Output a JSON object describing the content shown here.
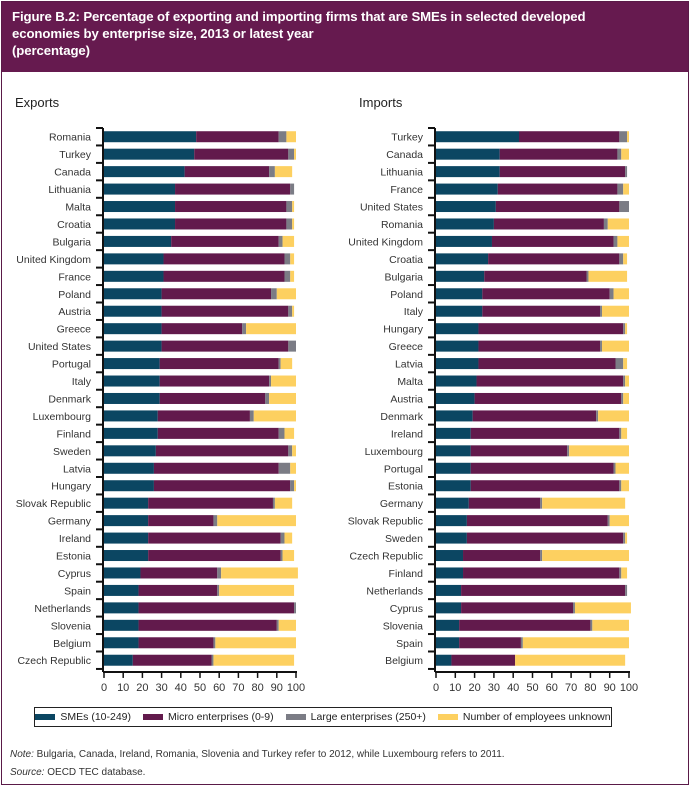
{
  "header": {
    "line1": "Figure B.2: Percentage of exporting and importing firms that are SMEs in selected developed",
    "line2": "economies by enterprise size, 2013 or latest year",
    "line3": "(percentage)"
  },
  "legend": [
    {
      "label": "SMEs (10-249)",
      "color": "#0b4662"
    },
    {
      "label": "Micro enterprises (0-9)",
      "color": "#621a4c"
    },
    {
      "label": "Large enterprises (250+)",
      "color": "#7b7c85"
    },
    {
      "label": "Number of employees unknown",
      "color": "#fdd060"
    }
  ],
  "note": {
    "label": "Note:",
    "text": " Bulgaria, Canada, Ireland, Romania, Slovenia and Turkey refer to 2012, while Luxembourg refers to 2011."
  },
  "source": {
    "label": "Source:",
    "text": " OECD TEC database."
  },
  "chart_data": [
    {
      "type": "bar",
      "orientation": "horizontal",
      "stacked": true,
      "title": "Exports",
      "xlabel": "",
      "ylabel": "",
      "xlim": [
        0,
        100
      ],
      "xticks": [
        0,
        10,
        20,
        30,
        40,
        50,
        60,
        70,
        80,
        90,
        100
      ],
      "grid": false,
      "legend": "bottom",
      "categories": [
        "Romania",
        "Turkey",
        "Canada",
        "Lithuania",
        "Malta",
        "Croatia",
        "Bulgaria",
        "United Kingdom",
        "France",
        "Poland",
        "Austria",
        "Greece",
        "United States",
        "Portugal",
        "Italy",
        "Denmark",
        "Luxembourg",
        "Finland",
        "Sweden",
        "Latvia",
        "Hungary",
        "Slovak Republic",
        "Germany",
        "Ireland",
        "Estonia",
        "Cyprus",
        "Spain",
        "Netherlands",
        "Slovenia",
        "Belgium",
        "Czech Republic"
      ],
      "series": [
        {
          "name": "SMEs (10-249)",
          "values": [
            48,
            47,
            42,
            37,
            37,
            37,
            35,
            31,
            31,
            30,
            30,
            30,
            30,
            29,
            29,
            29,
            28,
            28,
            27,
            26,
            26,
            23,
            23,
            23,
            23,
            19,
            18,
            18,
            18,
            18,
            15
          ]
        },
        {
          "name": "Micro enterprises (0-9)",
          "values": [
            43,
            49,
            44,
            60,
            58,
            58,
            56,
            63,
            63,
            57,
            66,
            42,
            66,
            62,
            57,
            55,
            48,
            63,
            69,
            65,
            71,
            65,
            34,
            69,
            69,
            40,
            41,
            81,
            72,
            39,
            41
          ]
        },
        {
          "name": "Large enterprises (250+)",
          "values": [
            4,
            3,
            3,
            2,
            3,
            3,
            2,
            3,
            3,
            3,
            2,
            2,
            4,
            1,
            1,
            2,
            2,
            3,
            2,
            6,
            2,
            1,
            2,
            2,
            1,
            2,
            1,
            1,
            1,
            1,
            1
          ]
        },
        {
          "name": "Number of employees unknown",
          "values": [
            5,
            1,
            9,
            0,
            1,
            1,
            6,
            2,
            2,
            10,
            1,
            26,
            0,
            6,
            13,
            14,
            22,
            5,
            2,
            3,
            1,
            9,
            41,
            4,
            6,
            40,
            39,
            0,
            9,
            42,
            42
          ]
        }
      ]
    },
    {
      "type": "bar",
      "orientation": "horizontal",
      "stacked": true,
      "title": "Imports",
      "xlabel": "",
      "ylabel": "",
      "xlim": [
        0,
        100
      ],
      "xticks": [
        0,
        10,
        20,
        30,
        40,
        50,
        60,
        70,
        80,
        90,
        100
      ],
      "grid": false,
      "legend": "bottom",
      "categories": [
        "Turkey",
        "Canada",
        "Lithuania",
        "France",
        "United States",
        "Romania",
        "United Kingdom",
        "Croatia",
        "Bulgaria",
        "Poland",
        "Italy",
        "Hungary",
        "Greece",
        "Latvia",
        "Malta",
        "Austria",
        "Denmark",
        "Ireland",
        "Luxembourg",
        "Portugal",
        "Estonia",
        "Germany",
        "Slovak Republic",
        "Sweden",
        "Czech Republic",
        "Finland",
        "Netherlands",
        "Cyprus",
        "Slovenia",
        "Spain",
        "Belgium"
      ],
      "series": [
        {
          "name": "SMEs (10-249)",
          "values": [
            43,
            33,
            33,
            32,
            31,
            30,
            29,
            27,
            25,
            24,
            24,
            22,
            22,
            22,
            21,
            20,
            19,
            18,
            18,
            18,
            18,
            17,
            16,
            16,
            14,
            14,
            13,
            13,
            12,
            12,
            8
          ]
        },
        {
          "name": "Micro enterprises (0-9)",
          "values": [
            52,
            61,
            65,
            62,
            64,
            57,
            63,
            68,
            53,
            66,
            61,
            75,
            63,
            71,
            76,
            76,
            64,
            77,
            50,
            74,
            77,
            37,
            73,
            81,
            40,
            81,
            85,
            58,
            68,
            32,
            33
          ]
        },
        {
          "name": "Large enterprises (250+)",
          "values": [
            4,
            2,
            1,
            3,
            5,
            2,
            2,
            2,
            1,
            2,
            1,
            1,
            1,
            4,
            1,
            1,
            1,
            1,
            1,
            1,
            1,
            1,
            1,
            1,
            1,
            1,
            1,
            1,
            1,
            1,
            0
          ]
        },
        {
          "name": "Number of employees unknown",
          "values": [
            1,
            4,
            0,
            3,
            0,
            11,
            6,
            2,
            20,
            8,
            14,
            1,
            14,
            2,
            2,
            3,
            16,
            3,
            31,
            7,
            4,
            43,
            10,
            1,
            45,
            3,
            0,
            29,
            19,
            55,
            57
          ]
        }
      ]
    }
  ]
}
